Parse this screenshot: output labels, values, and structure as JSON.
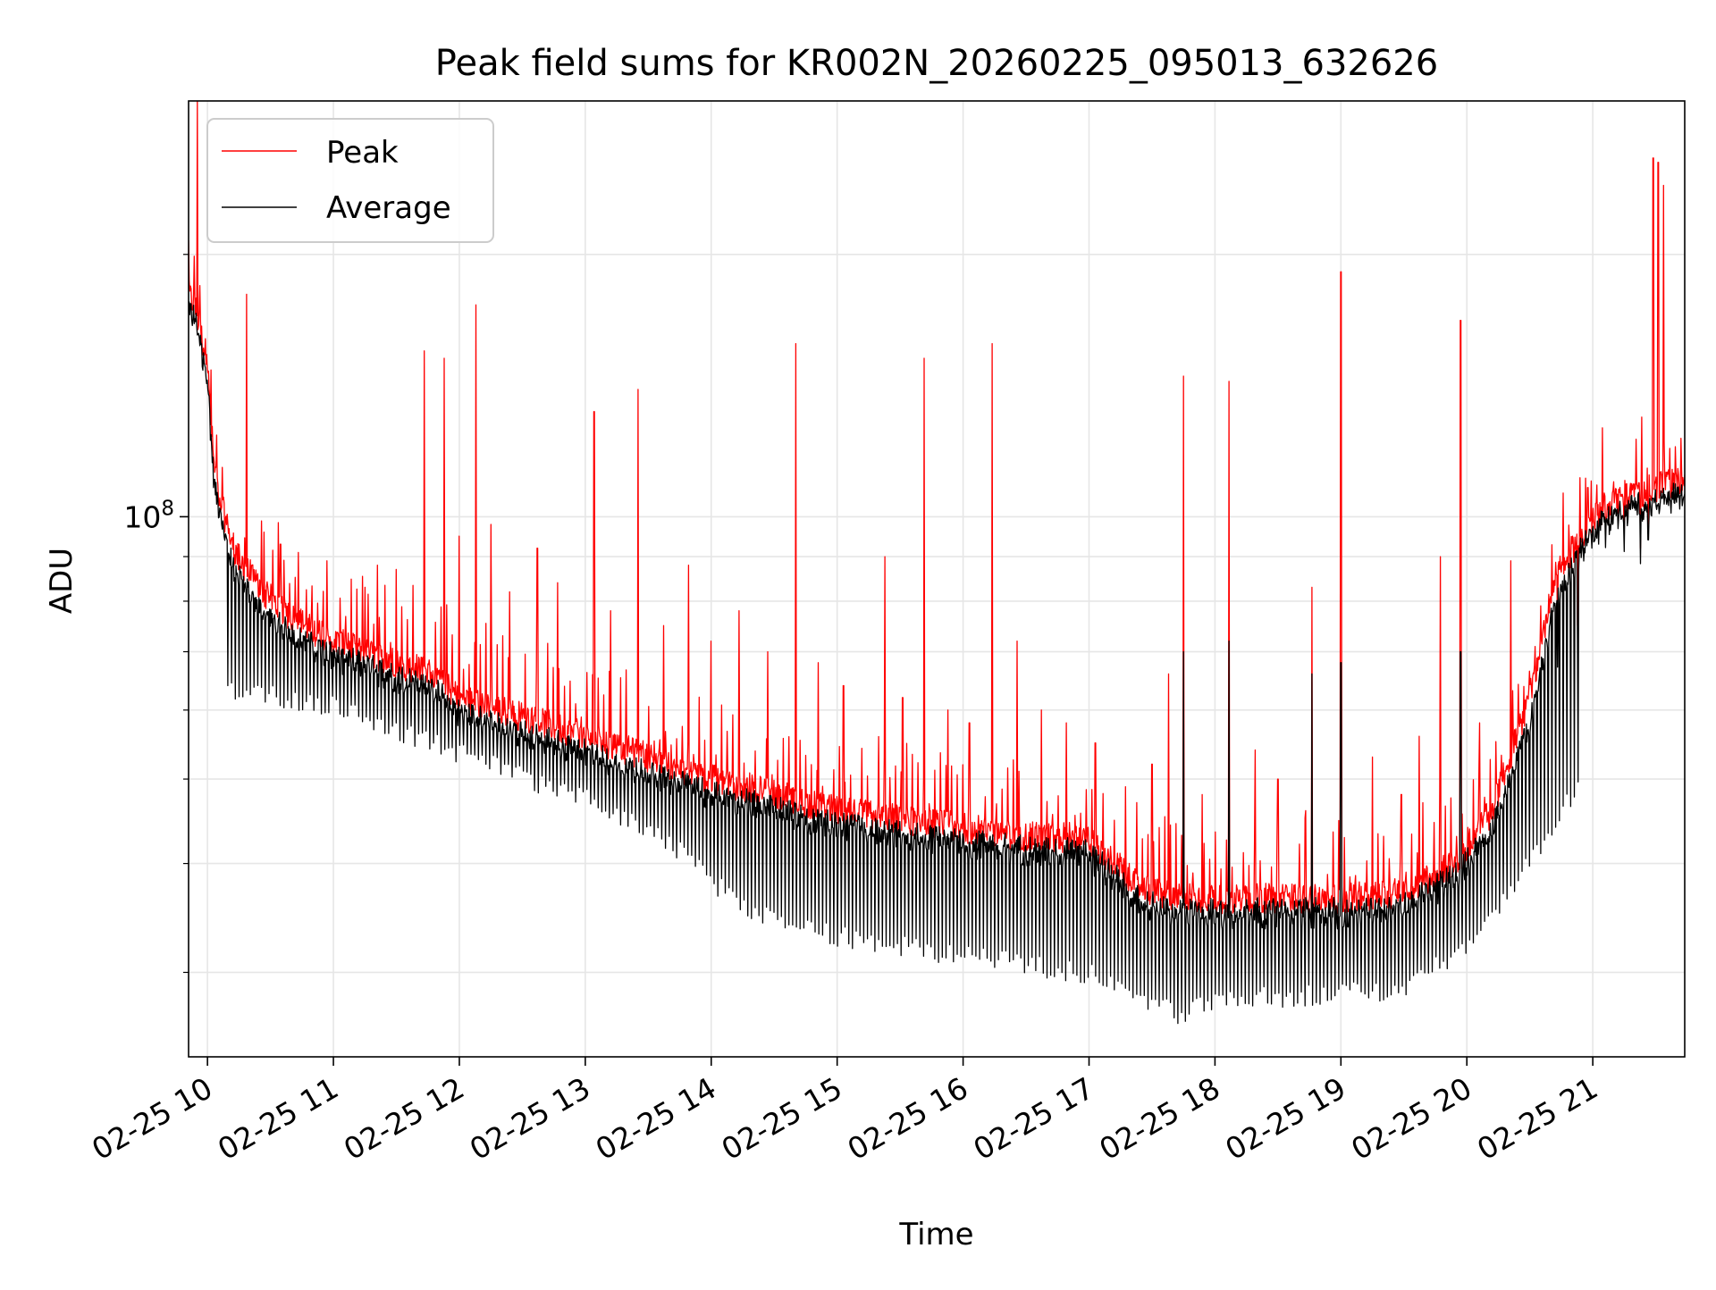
{
  "chart_data": {
    "type": "line",
    "title": "Peak field sums for KR002N_20260225_095013_632626",
    "xlabel": "Time",
    "ylabel": "ADU",
    "yscale": "log",
    "ylim": [
      24000000,
      300000000
    ],
    "xlim": [
      9.85,
      21.73
    ],
    "grid": true,
    "legend_position": "top-left",
    "x_tick_values": [
      10,
      11,
      12,
      13,
      14,
      15,
      16,
      17,
      18,
      19,
      20,
      21
    ],
    "x_tick_labels": [
      "02-25 10",
      "02-25 11",
      "02-25 12",
      "02-25 13",
      "02-25 14",
      "02-25 15",
      "02-25 16",
      "02-25 17",
      "02-25 18",
      "02-25 19",
      "02-25 20",
      "02-25 21"
    ],
    "y_major_ticks": [
      {
        "value": 100000000,
        "base": "10",
        "exp": "8"
      }
    ],
    "y_minor_ticks": [
      30000000,
      40000000,
      50000000,
      60000000,
      70000000,
      80000000,
      90000000,
      200000000
    ],
    "series": [
      {
        "name": "Peak",
        "color": "#ff0000",
        "baseline": [
          [
            9.85,
            180000000
          ],
          [
            9.9,
            175000000
          ],
          [
            10.0,
            150000000
          ],
          [
            10.05,
            115000000
          ],
          [
            10.1,
            105000000
          ],
          [
            10.2,
            92000000
          ],
          [
            10.4,
            83000000
          ],
          [
            10.7,
            76000000
          ],
          [
            11.0,
            72000000
          ],
          [
            11.5,
            68000000
          ],
          [
            11.8,
            66000000
          ],
          [
            12.0,
            62000000
          ],
          [
            12.5,
            59000000
          ],
          [
            13.0,
            56000000
          ],
          [
            13.5,
            53000000
          ],
          [
            14.0,
            50000000
          ],
          [
            14.5,
            48000000
          ],
          [
            15.0,
            46000000
          ],
          [
            15.5,
            45000000
          ],
          [
            16.0,
            44000000
          ],
          [
            16.5,
            43000000
          ],
          [
            17.0,
            42500000
          ],
          [
            17.2,
            40000000
          ],
          [
            17.4,
            37500000
          ],
          [
            17.7,
            36500000
          ],
          [
            18.0,
            36500000
          ],
          [
            18.5,
            36500000
          ],
          [
            19.0,
            36500000
          ],
          [
            19.5,
            37000000
          ],
          [
            19.9,
            40000000
          ],
          [
            20.2,
            46000000
          ],
          [
            20.5,
            62000000
          ],
          [
            20.7,
            85000000
          ],
          [
            20.9,
            95000000
          ],
          [
            21.1,
            103000000
          ],
          [
            21.3,
            106000000
          ],
          [
            21.5,
            108000000
          ],
          [
            21.73,
            110000000
          ]
        ],
        "spikes": [
          [
            9.92,
            300000000
          ],
          [
            10.31,
            180000000
          ],
          [
            10.45,
            96000000
          ],
          [
            10.58,
            93000000
          ],
          [
            10.72,
            91000000
          ],
          [
            10.95,
            89000000
          ],
          [
            11.25,
            83000000
          ],
          [
            11.35,
            88000000
          ],
          [
            11.5,
            87000000
          ],
          [
            11.72,
            155000000
          ],
          [
            11.88,
            152000000
          ],
          [
            12.0,
            95000000
          ],
          [
            12.13,
            175000000
          ],
          [
            12.25,
            98000000
          ],
          [
            12.4,
            82000000
          ],
          [
            12.62,
            92000000
          ],
          [
            12.78,
            84000000
          ],
          [
            13.07,
            132000000
          ],
          [
            13.2,
            78000000
          ],
          [
            13.42,
            140000000
          ],
          [
            13.62,
            75000000
          ],
          [
            13.82,
            88000000
          ],
          [
            14.0,
            72000000
          ],
          [
            14.22,
            78000000
          ],
          [
            14.45,
            70000000
          ],
          [
            14.67,
            158000000
          ],
          [
            14.85,
            68000000
          ],
          [
            15.05,
            64000000
          ],
          [
            15.38,
            90000000
          ],
          [
            15.52,
            62000000
          ],
          [
            15.69,
            152000000
          ],
          [
            15.88,
            60000000
          ],
          [
            16.05,
            58000000
          ],
          [
            16.23,
            158000000
          ],
          [
            16.43,
            72000000
          ],
          [
            16.62,
            60000000
          ],
          [
            16.82,
            58000000
          ],
          [
            17.05,
            55000000
          ],
          [
            17.5,
            52000000
          ],
          [
            17.63,
            66000000
          ],
          [
            17.75,
            145000000
          ],
          [
            17.9,
            48000000
          ],
          [
            18.11,
            143000000
          ],
          [
            18.32,
            54000000
          ],
          [
            18.5,
            50000000
          ],
          [
            18.72,
            46000000
          ],
          [
            18.77,
            83000000
          ],
          [
            19.0,
            191000000
          ],
          [
            19.25,
            53000000
          ],
          [
            19.48,
            48000000
          ],
          [
            19.62,
            56000000
          ],
          [
            19.79,
            90000000
          ],
          [
            19.95,
            168000000
          ],
          [
            20.1,
            58000000
          ],
          [
            20.35,
            89000000
          ],
          [
            20.58,
            72000000
          ],
          [
            20.72,
            70000000
          ],
          [
            20.88,
            75000000
          ],
          [
            20.96,
            108000000
          ],
          [
            21.1,
            96000000
          ],
          [
            21.25,
            95000000
          ],
          [
            21.38,
            92000000
          ],
          [
            21.44,
            98000000
          ],
          [
            21.48,
            258000000
          ],
          [
            21.52,
            255000000
          ],
          [
            21.56,
            240000000
          ]
        ]
      },
      {
        "name": "Average",
        "color": "#000000",
        "baseline": [
          [
            9.85,
            175000000
          ],
          [
            9.9,
            170000000
          ],
          [
            10.0,
            145000000
          ],
          [
            10.05,
            110000000
          ],
          [
            10.1,
            100000000
          ],
          [
            10.2,
            88000000
          ],
          [
            10.4,
            79000000
          ],
          [
            10.7,
            73000000
          ],
          [
            11.0,
            70000000
          ],
          [
            11.5,
            66000000
          ],
          [
            11.8,
            64000000
          ],
          [
            12.0,
            60000000
          ],
          [
            12.5,
            57000000
          ],
          [
            13.0,
            54000000
          ],
          [
            13.5,
            51000000
          ],
          [
            14.0,
            48500000
          ],
          [
            14.5,
            46500000
          ],
          [
            15.0,
            44500000
          ],
          [
            15.5,
            43500000
          ],
          [
            16.0,
            42500000
          ],
          [
            16.5,
            42000000
          ],
          [
            17.0,
            41500000
          ],
          [
            17.2,
            39000000
          ],
          [
            17.4,
            36500000
          ],
          [
            17.7,
            35500000
          ],
          [
            18.0,
            35500000
          ],
          [
            18.5,
            35500000
          ],
          [
            19.0,
            35500000
          ],
          [
            19.5,
            36000000
          ],
          [
            19.9,
            39000000
          ],
          [
            20.2,
            44000000
          ],
          [
            20.5,
            58000000
          ],
          [
            20.7,
            80000000
          ],
          [
            20.9,
            92000000
          ],
          [
            21.1,
            100000000
          ],
          [
            21.3,
            103000000
          ],
          [
            21.5,
            105000000
          ],
          [
            21.73,
            107000000
          ]
        ],
        "dips": [
          [
            10.0,
            62000000
          ],
          [
            11.0,
            59000000
          ],
          [
            12.0,
            52000000
          ],
          [
            13.0,
            46000000
          ],
          [
            13.6,
            42000000
          ],
          [
            14.2,
            35000000
          ],
          [
            15.0,
            32000000
          ],
          [
            16.0,
            30500000
          ],
          [
            17.0,
            29000000
          ],
          [
            17.75,
            26000000
          ],
          [
            18.0,
            27200000
          ],
          [
            19.0,
            27500000
          ],
          [
            19.5,
            28000000
          ],
          [
            20.0,
            31000000
          ],
          [
            20.5,
            39000000
          ],
          [
            20.85,
            47000000
          ]
        ],
        "spikes": [
          [
            17.75,
            70000000
          ],
          [
            18.11,
            72000000
          ],
          [
            18.77,
            66000000
          ],
          [
            19.0,
            68000000
          ],
          [
            19.95,
            70000000
          ],
          [
            21.48,
            105000000
          ]
        ]
      }
    ]
  }
}
